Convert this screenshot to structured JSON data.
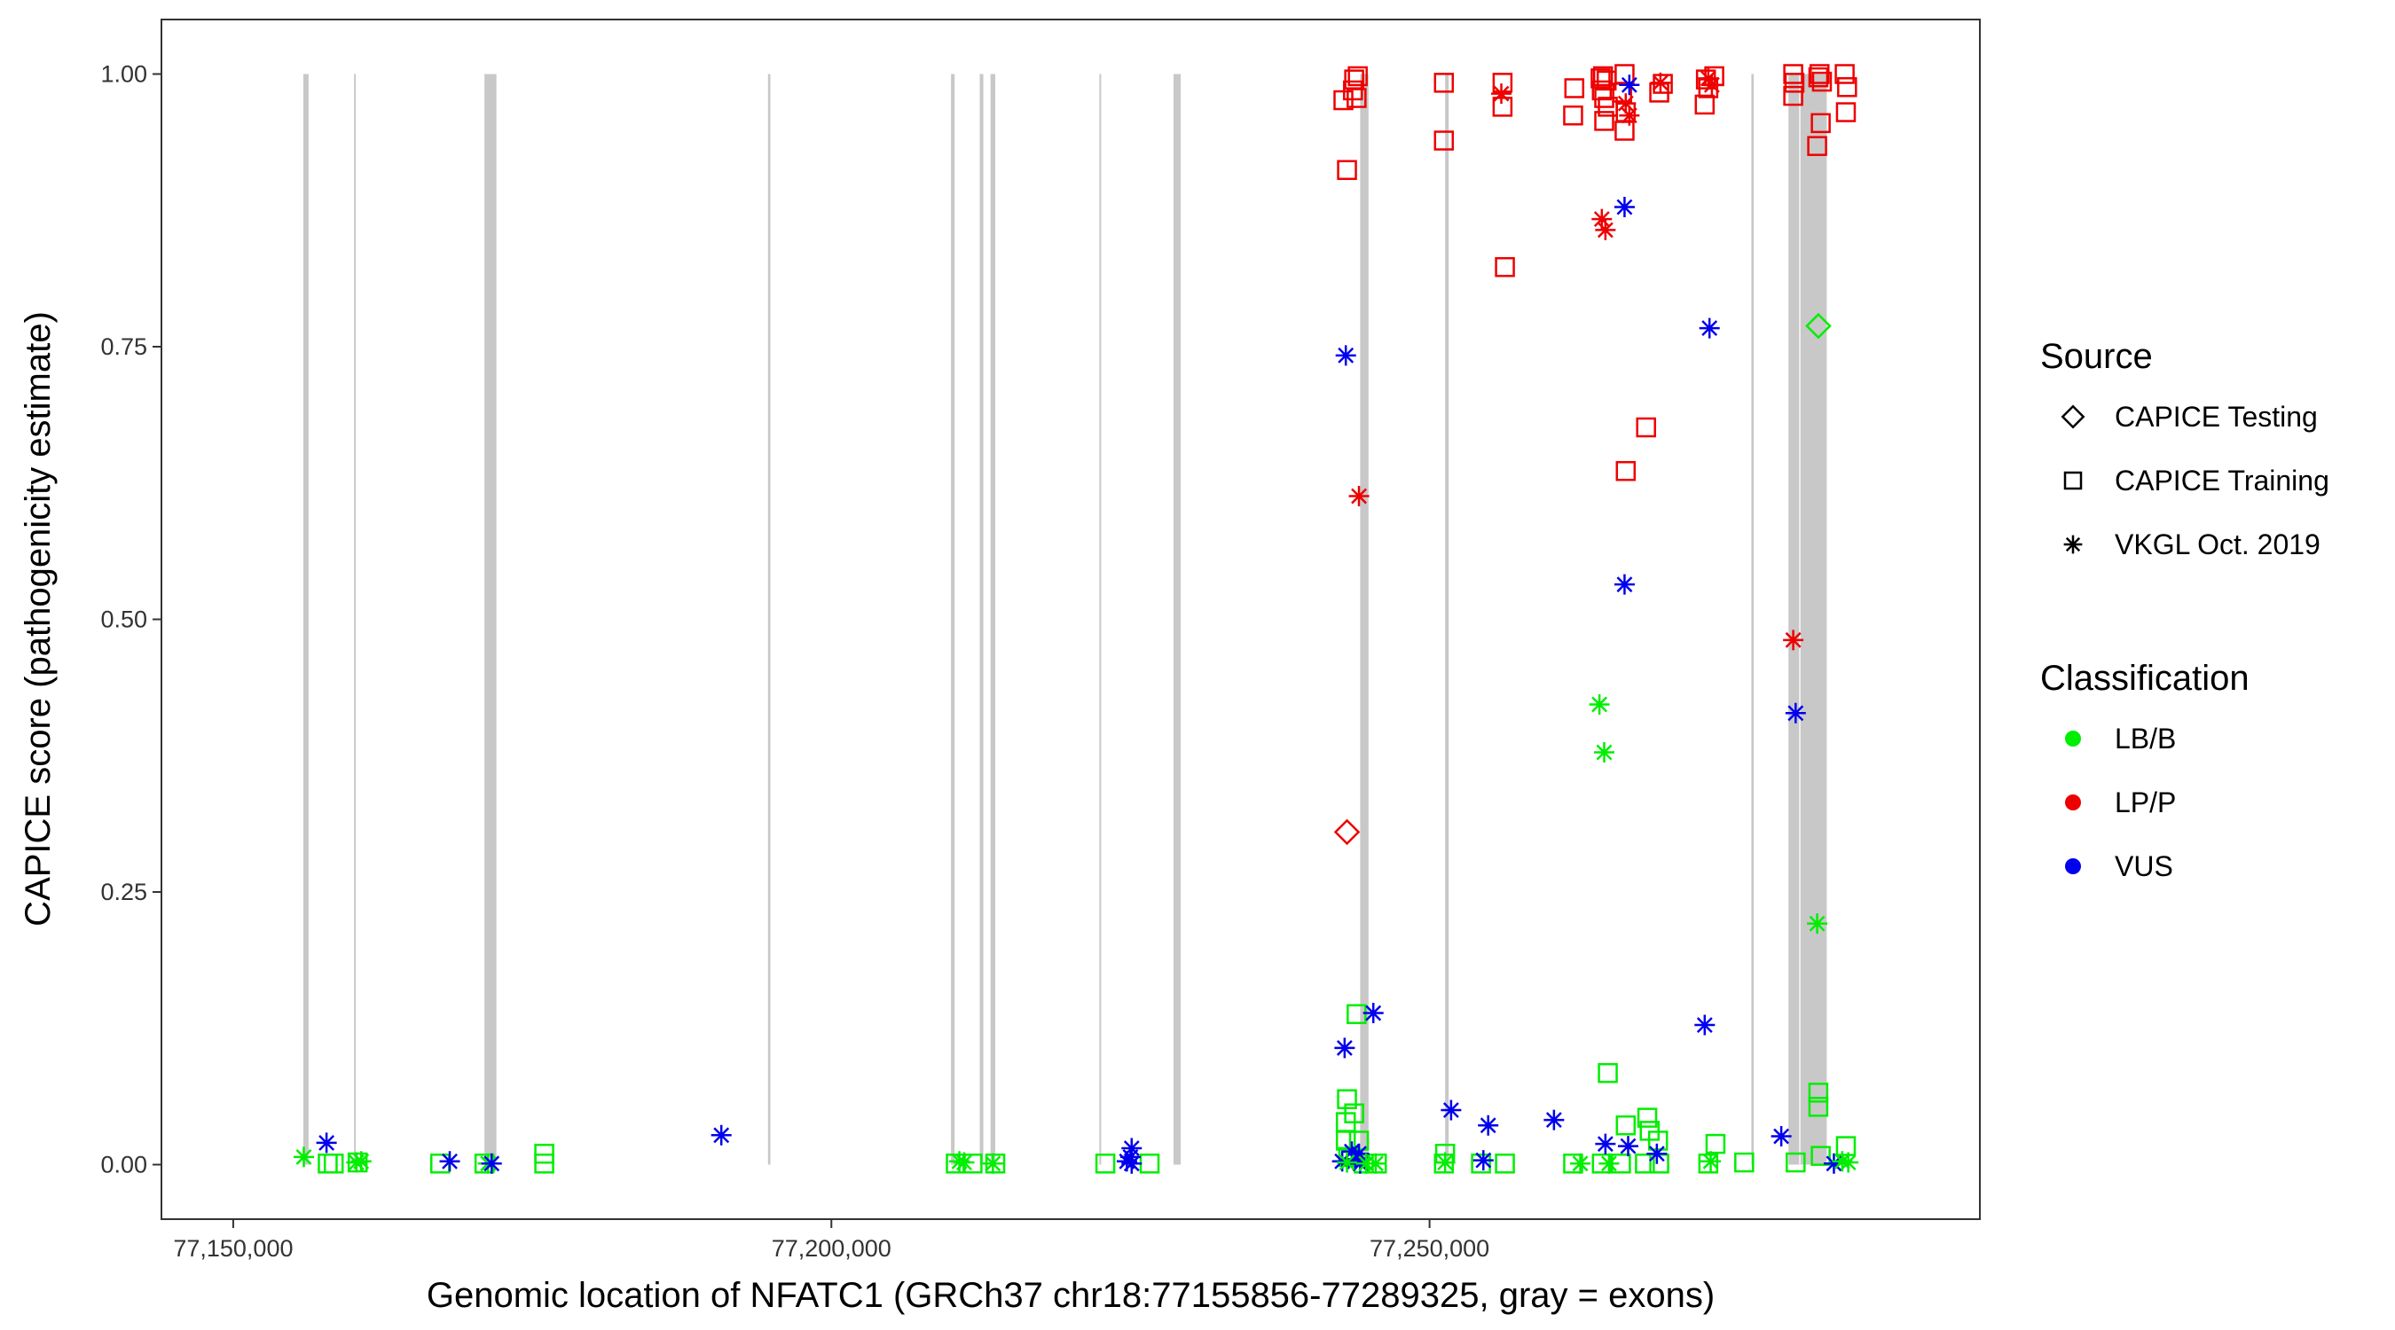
{
  "chart_data": {
    "type": "scatter",
    "title": "",
    "xlabel": "Genomic location of NFATC1 (GRCh37 chr18:77155856-77289325, gray = exons)",
    "ylabel": "CAPICE score (pathogenicity estimate)",
    "xlim": [
      77144000,
      77296000
    ],
    "ylim": [
      -0.05,
      1.05
    ],
    "x_ticks": [
      {
        "value": 77150000,
        "label": "77,150,000"
      },
      {
        "value": 77200000,
        "label": "77,200,000"
      },
      {
        "value": 77250000,
        "label": "77,250,000"
      }
    ],
    "y_ticks": [
      {
        "value": 0.0,
        "label": "0.00"
      },
      {
        "value": 0.25,
        "label": "0.25"
      },
      {
        "value": 0.5,
        "label": "0.50"
      },
      {
        "value": 0.75,
        "label": "0.75"
      },
      {
        "value": 1.0,
        "label": "1.00"
      }
    ],
    "grid": false,
    "exons": [
      [
        77155856,
        77156300
      ],
      [
        77160100,
        77160250
      ],
      [
        77171000,
        77172000
      ],
      [
        77194700,
        77194900
      ],
      [
        77210000,
        77210300
      ],
      [
        77212400,
        77212700
      ],
      [
        77213300,
        77213700
      ],
      [
        77222400,
        77222550
      ],
      [
        77228600,
        77229200
      ],
      [
        77244200,
        77244900
      ],
      [
        77251300,
        77251600
      ],
      [
        77276900,
        77277100
      ],
      [
        77280000,
        77280900
      ],
      [
        77281000,
        77283200
      ]
    ],
    "legend": {
      "placement": "right",
      "source_title": "Source",
      "source_items": [
        {
          "label": "CAPICE Testing",
          "shape": "diamond"
        },
        {
          "label": "CAPICE Training",
          "shape": "square"
        },
        {
          "label": "VKGL Oct. 2019",
          "shape": "asterisk"
        }
      ],
      "class_title": "Classification",
      "class_items": [
        {
          "label": "LB/B",
          "color": "#00ee00"
        },
        {
          "label": "LP/P",
          "color": "#ee0000"
        },
        {
          "label": "VUS",
          "color": "#0000ee"
        }
      ]
    },
    "series": [
      {
        "name": "CAPICE Testing",
        "shape": "diamond",
        "points": [
          {
            "x": 77243100,
            "y": 0.305,
            "class": "LP/P"
          },
          {
            "x": 77282500,
            "y": 0.769,
            "class": "LB/B"
          }
        ]
      },
      {
        "name": "CAPICE Training",
        "shape": "square",
        "points": [
          {
            "x": 77157900,
            "y": 0.001,
            "class": "LB/B"
          },
          {
            "x": 77158400,
            "y": 0.001,
            "class": "LB/B"
          },
          {
            "x": 77160400,
            "y": 0.002,
            "class": "LB/B"
          },
          {
            "x": 77167300,
            "y": 0.001,
            "class": "LB/B"
          },
          {
            "x": 77171000,
            "y": 0.001,
            "class": "LB/B"
          },
          {
            "x": 77176000,
            "y": 0.01,
            "class": "LB/B"
          },
          {
            "x": 77176000,
            "y": 0.001,
            "class": "LB/B"
          },
          {
            "x": 77210400,
            "y": 0.001,
            "class": "LB/B"
          },
          {
            "x": 77211800,
            "y": 0.001,
            "class": "LB/B"
          },
          {
            "x": 77213700,
            "y": 0.001,
            "class": "LB/B"
          },
          {
            "x": 77222900,
            "y": 0.001,
            "class": "LB/B"
          },
          {
            "x": 77226600,
            "y": 0.001,
            "class": "LB/B"
          },
          {
            "x": 77242800,
            "y": 0.976,
            "class": "LP/P"
          },
          {
            "x": 77243100,
            "y": 0.912,
            "class": "LP/P"
          },
          {
            "x": 77243700,
            "y": 0.995,
            "class": "LP/P"
          },
          {
            "x": 77244000,
            "y": 0.998,
            "class": "LP/P"
          },
          {
            "x": 77243600,
            "y": 0.985,
            "class": "LP/P"
          },
          {
            "x": 77243900,
            "y": 0.978,
            "class": "LP/P"
          },
          {
            "x": 77243100,
            "y": 0.06,
            "class": "LB/B"
          },
          {
            "x": 77243700,
            "y": 0.047,
            "class": "LB/B"
          },
          {
            "x": 77243900,
            "y": 0.138,
            "class": "LB/B"
          },
          {
            "x": 77243000,
            "y": 0.039,
            "class": "LB/B"
          },
          {
            "x": 77243000,
            "y": 0.022,
            "class": "LB/B"
          },
          {
            "x": 77244100,
            "y": 0.022,
            "class": "LB/B"
          },
          {
            "x": 77243200,
            "y": 0.007,
            "class": "LB/B"
          },
          {
            "x": 77244500,
            "y": 0.001,
            "class": "LB/B"
          },
          {
            "x": 77245600,
            "y": 0.001,
            "class": "LB/B"
          },
          {
            "x": 77251200,
            "y": 0.992,
            "class": "LP/P"
          },
          {
            "x": 77251200,
            "y": 0.939,
            "class": "LP/P"
          },
          {
            "x": 77251300,
            "y": 0.01,
            "class": "LB/B"
          },
          {
            "x": 77251200,
            "y": 0.001,
            "class": "LB/B"
          },
          {
            "x": 77256100,
            "y": 0.992,
            "class": "LP/P"
          },
          {
            "x": 77256100,
            "y": 0.97,
            "class": "LP/P"
          },
          {
            "x": 77256300,
            "y": 0.823,
            "class": "LP/P"
          },
          {
            "x": 77254300,
            "y": 0.001,
            "class": "LB/B"
          },
          {
            "x": 77256300,
            "y": 0.001,
            "class": "LB/B"
          },
          {
            "x": 77262100,
            "y": 0.987,
            "class": "LP/P"
          },
          {
            "x": 77262000,
            "y": 0.962,
            "class": "LP/P"
          },
          {
            "x": 77262000,
            "y": 0.001,
            "class": "LB/B"
          },
          {
            "x": 77264300,
            "y": 0.996,
            "class": "LP/P"
          },
          {
            "x": 77264500,
            "y": 0.998,
            "class": "LP/P"
          },
          {
            "x": 77264800,
            "y": 0.994,
            "class": "LP/P"
          },
          {
            "x": 77264400,
            "y": 0.985,
            "class": "LP/P"
          },
          {
            "x": 77264600,
            "y": 0.978,
            "class": "LP/P"
          },
          {
            "x": 77264900,
            "y": 0.97,
            "class": "LP/P"
          },
          {
            "x": 77264600,
            "y": 0.957,
            "class": "LP/P"
          },
          {
            "x": 77266300,
            "y": 1.0,
            "class": "LP/P"
          },
          {
            "x": 77266100,
            "y": 0.983,
            "class": "LP/P"
          },
          {
            "x": 77266400,
            "y": 0.965,
            "class": "LP/P"
          },
          {
            "x": 77266300,
            "y": 0.948,
            "class": "LP/P"
          },
          {
            "x": 77266400,
            "y": 0.636,
            "class": "LP/P"
          },
          {
            "x": 77268100,
            "y": 0.676,
            "class": "LP/P"
          },
          {
            "x": 77264900,
            "y": 0.084,
            "class": "LB/B"
          },
          {
            "x": 77266400,
            "y": 0.036,
            "class": "LB/B"
          },
          {
            "x": 77268200,
            "y": 0.043,
            "class": "LB/B"
          },
          {
            "x": 77268400,
            "y": 0.031,
            "class": "LB/B"
          },
          {
            "x": 77269100,
            "y": 0.022,
            "class": "LB/B"
          },
          {
            "x": 77264400,
            "y": 0.001,
            "class": "LB/B"
          },
          {
            "x": 77266000,
            "y": 0.001,
            "class": "LB/B"
          },
          {
            "x": 77268000,
            "y": 0.001,
            "class": "LB/B"
          },
          {
            "x": 77269200,
            "y": 0.001,
            "class": "LB/B"
          },
          {
            "x": 77269500,
            "y": 0.991,
            "class": "LP/P"
          },
          {
            "x": 77269200,
            "y": 0.983,
            "class": "LP/P"
          },
          {
            "x": 77273100,
            "y": 0.995,
            "class": "LP/P"
          },
          {
            "x": 77273800,
            "y": 0.998,
            "class": "LP/P"
          },
          {
            "x": 77273300,
            "y": 0.987,
            "class": "LP/P"
          },
          {
            "x": 77273000,
            "y": 0.972,
            "class": "LP/P"
          },
          {
            "x": 77273900,
            "y": 0.019,
            "class": "LB/B"
          },
          {
            "x": 77273300,
            "y": 0.001,
            "class": "LB/B"
          },
          {
            "x": 77276300,
            "y": 0.002,
            "class": "LB/B"
          },
          {
            "x": 77280400,
            "y": 1.0,
            "class": "LP/P"
          },
          {
            "x": 77280500,
            "y": 0.992,
            "class": "LP/P"
          },
          {
            "x": 77280400,
            "y": 0.98,
            "class": "LP/P"
          },
          {
            "x": 77282600,
            "y": 1.0,
            "class": "LP/P"
          },
          {
            "x": 77282500,
            "y": 0.997,
            "class": "LP/P"
          },
          {
            "x": 77282800,
            "y": 0.993,
            "class": "LP/P"
          },
          {
            "x": 77282700,
            "y": 0.955,
            "class": "LP/P"
          },
          {
            "x": 77282400,
            "y": 0.934,
            "class": "LP/P"
          },
          {
            "x": 77284700,
            "y": 1.0,
            "class": "LP/P"
          },
          {
            "x": 77284900,
            "y": 0.988,
            "class": "LP/P"
          },
          {
            "x": 77284800,
            "y": 0.965,
            "class": "LP/P"
          },
          {
            "x": 77282500,
            "y": 0.066,
            "class": "LB/B"
          },
          {
            "x": 77282500,
            "y": 0.053,
            "class": "LB/B"
          },
          {
            "x": 77284800,
            "y": 0.017,
            "class": "LB/B"
          },
          {
            "x": 77280600,
            "y": 0.002,
            "class": "LB/B"
          },
          {
            "x": 77282700,
            "y": 0.008,
            "class": "LB/B"
          }
        ]
      },
      {
        "name": "VKGL Oct. 2019",
        "shape": "asterisk",
        "points": [
          {
            "x": 77155900,
            "y": 0.007,
            "class": "LB/B"
          },
          {
            "x": 77157800,
            "y": 0.02,
            "class": "VUS"
          },
          {
            "x": 77160300,
            "y": 0.002,
            "class": "LB/B"
          },
          {
            "x": 77160700,
            "y": 0.003,
            "class": "LB/B"
          },
          {
            "x": 77168100,
            "y": 0.003,
            "class": "VUS"
          },
          {
            "x": 77171300,
            "y": 0.001,
            "class": "LB/B"
          },
          {
            "x": 77171600,
            "y": 0.001,
            "class": "VUS"
          },
          {
            "x": 77190800,
            "y": 0.027,
            "class": "VUS"
          },
          {
            "x": 77210700,
            "y": 0.003,
            "class": "LB/B"
          },
          {
            "x": 77211100,
            "y": 0.002,
            "class": "LB/B"
          },
          {
            "x": 77213500,
            "y": 0.001,
            "class": "LB/B"
          },
          {
            "x": 77225100,
            "y": 0.015,
            "class": "VUS"
          },
          {
            "x": 77225000,
            "y": 0.007,
            "class": "VUS"
          },
          {
            "x": 77224700,
            "y": 0.003,
            "class": "VUS"
          },
          {
            "x": 77225100,
            "y": 0.001,
            "class": "VUS"
          },
          {
            "x": 77243000,
            "y": 0.742,
            "class": "VUS"
          },
          {
            "x": 77244100,
            "y": 0.613,
            "class": "LP/P"
          },
          {
            "x": 77242900,
            "y": 0.107,
            "class": "VUS"
          },
          {
            "x": 77245300,
            "y": 0.139,
            "class": "VUS"
          },
          {
            "x": 77243500,
            "y": 0.012,
            "class": "VUS"
          },
          {
            "x": 77244100,
            "y": 0.01,
            "class": "VUS"
          },
          {
            "x": 77243800,
            "y": 0.005,
            "class": "VUS"
          },
          {
            "x": 77242700,
            "y": 0.003,
            "class": "VUS"
          },
          {
            "x": 77244200,
            "y": 0.001,
            "class": "VUS"
          },
          {
            "x": 77243100,
            "y": 0.002,
            "class": "LB/B"
          },
          {
            "x": 77244700,
            "y": 0.001,
            "class": "LB/B"
          },
          {
            "x": 77245500,
            "y": 0.001,
            "class": "LB/B"
          },
          {
            "x": 77251800,
            "y": 0.05,
            "class": "VUS"
          },
          {
            "x": 77251300,
            "y": 0.002,
            "class": "LB/B"
          },
          {
            "x": 77256000,
            "y": 0.982,
            "class": "LP/P"
          },
          {
            "x": 77254900,
            "y": 0.036,
            "class": "VUS"
          },
          {
            "x": 77254500,
            "y": 0.004,
            "class": "VUS"
          },
          {
            "x": 77260400,
            "y": 0.041,
            "class": "VUS"
          },
          {
            "x": 77262600,
            "y": 0.001,
            "class": "LB/B"
          },
          {
            "x": 77264400,
            "y": 0.867,
            "class": "LP/P"
          },
          {
            "x": 77264700,
            "y": 0.857,
            "class": "LP/P"
          },
          {
            "x": 77264200,
            "y": 0.422,
            "class": "LB/B"
          },
          {
            "x": 77264600,
            "y": 0.378,
            "class": "LB/B"
          },
          {
            "x": 77264700,
            "y": 0.019,
            "class": "VUS"
          },
          {
            "x": 77266600,
            "y": 0.017,
            "class": "VUS"
          },
          {
            "x": 77265000,
            "y": 0.001,
            "class": "LB/B"
          },
          {
            "x": 77266300,
            "y": 0.878,
            "class": "VUS"
          },
          {
            "x": 77266300,
            "y": 0.532,
            "class": "VUS"
          },
          {
            "x": 77266700,
            "y": 0.99,
            "class": "VUS"
          },
          {
            "x": 77266400,
            "y": 0.973,
            "class": "LP/P"
          },
          {
            "x": 77266700,
            "y": 0.962,
            "class": "LP/P"
          },
          {
            "x": 77269300,
            "y": 0.992,
            "class": "LP/P"
          },
          {
            "x": 77269000,
            "y": 0.01,
            "class": "VUS"
          },
          {
            "x": 77273000,
            "y": 0.128,
            "class": "VUS"
          },
          {
            "x": 77273400,
            "y": 0.767,
            "class": "VUS"
          },
          {
            "x": 77273300,
            "y": 0.996,
            "class": "LP/P"
          },
          {
            "x": 77273600,
            "y": 0.99,
            "class": "LP/P"
          },
          {
            "x": 77273500,
            "y": 0.003,
            "class": "LB/B"
          },
          {
            "x": 77279400,
            "y": 0.026,
            "class": "VUS"
          },
          {
            "x": 77280400,
            "y": 0.481,
            "class": "LP/P"
          },
          {
            "x": 77280600,
            "y": 0.414,
            "class": "VUS"
          },
          {
            "x": 77282400,
            "y": 0.221,
            "class": "LB/B"
          },
          {
            "x": 77283800,
            "y": 0.001,
            "class": "VUS"
          },
          {
            "x": 77284500,
            "y": 0.003,
            "class": "LB/B"
          },
          {
            "x": 77285000,
            "y": 0.002,
            "class": "LB/B"
          }
        ]
      }
    ]
  }
}
